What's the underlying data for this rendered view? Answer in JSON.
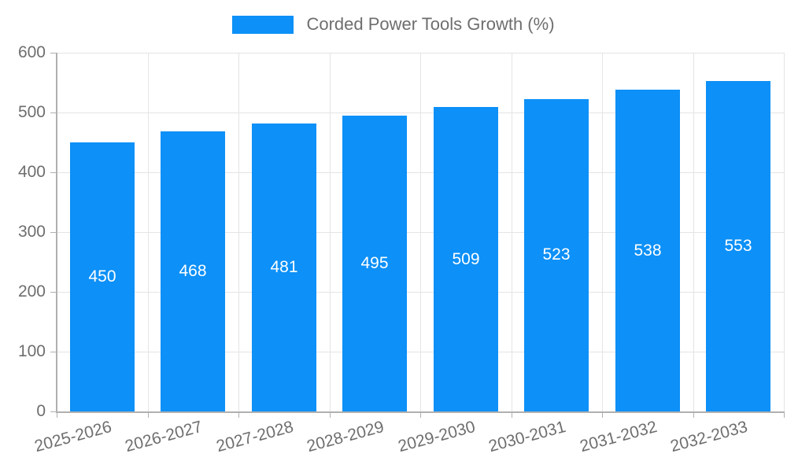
{
  "legend": {
    "label": "Corded Power Tools Growth (%)"
  },
  "colors": {
    "bar": "#0d90f7",
    "bar_label": "#ffffff",
    "axis_text": "#6e6e6e",
    "grid_line": "#e4e4e4",
    "axis_line": "#b0b0b0",
    "background": "#ffffff"
  },
  "chart_data": {
    "type": "bar",
    "title": "",
    "series_name": "Corded Power Tools Growth (%)",
    "categories": [
      "2025-2026",
      "2026-2027",
      "2027-2028",
      "2028-2029",
      "2029-2030",
      "2030-2031",
      "2031-2032",
      "2032-2033"
    ],
    "values": [
      450,
      468,
      481,
      495,
      509,
      523,
      538,
      553
    ],
    "bar_value_labels": [
      "450",
      "468",
      "481",
      "495",
      "509",
      "523",
      "538",
      "553"
    ],
    "xlabel": "",
    "ylabel": "",
    "ylim": [
      0,
      600
    ],
    "yticks": [
      0,
      100,
      200,
      300,
      400,
      500,
      600
    ],
    "grid": "on",
    "legend_position": "top-center",
    "x_label_rotation_deg": -15,
    "bar_label_position": "inside-center"
  }
}
